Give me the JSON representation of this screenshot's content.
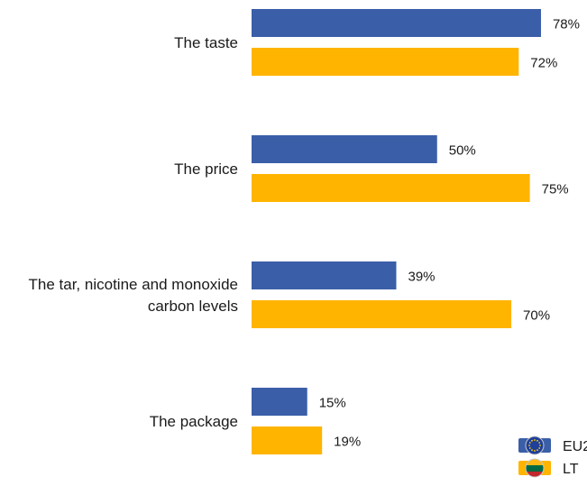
{
  "chart_data": {
    "type": "bar",
    "orientation": "horizontal",
    "categories": [
      [
        "The taste"
      ],
      [
        "The price"
      ],
      [
        "The tar, nicotine and monoxide",
        "carbon levels"
      ],
      [
        "The package"
      ]
    ],
    "series": [
      {
        "name": "EU2",
        "values": [
          78,
          50,
          39,
          15
        ],
        "color": "#3a5ea8",
        "icon": "eu-flag-icon"
      },
      {
        "name": "LT",
        "values": [
          72,
          75,
          70,
          19
        ],
        "color": "#ffb400",
        "icon": "lithuania-flag-icon"
      }
    ],
    "value_suffix": "%",
    "xlim": [
      0,
      100
    ],
    "grid": false,
    "legend_position": "bottom-right"
  }
}
